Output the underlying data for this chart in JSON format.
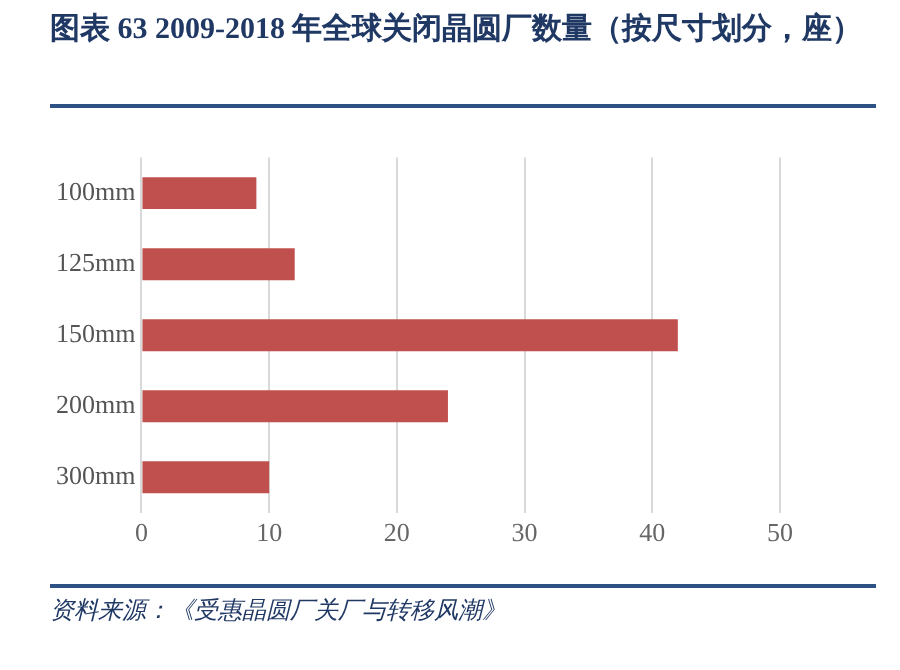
{
  "chart_data": {
    "type": "bar",
    "orientation": "horizontal",
    "title": "图表 63 2009-2018 年全球关闭晶圆厂数量（按尺寸划分，座）",
    "categories": [
      "100mm",
      "125mm",
      "150mm",
      "200mm",
      "300mm"
    ],
    "values": [
      9,
      12,
      42,
      24,
      10
    ],
    "color": "#c0504d",
    "xlim": [
      0,
      50
    ],
    "xticks": [
      0,
      10,
      20,
      30,
      40,
      50
    ],
    "grid": "x",
    "legend": false,
    "annotations": [
      "资料来源：《受惠晶圆厂关厂与转移风潮》"
    ]
  }
}
